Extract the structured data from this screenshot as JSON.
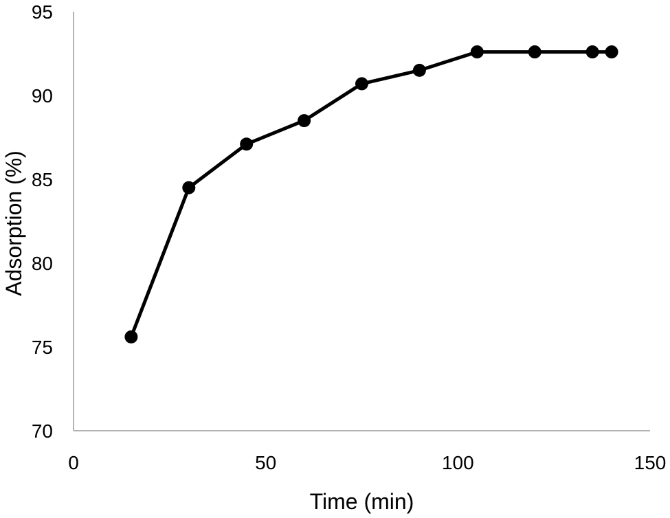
{
  "chart_data": {
    "type": "line",
    "title": "",
    "xlabel": "Time (min)",
    "ylabel": "Adsorption (%)",
    "xlim": [
      0,
      150
    ],
    "ylim": [
      70,
      95
    ],
    "xticks": [
      0,
      50,
      100,
      150
    ],
    "yticks": [
      70,
      75,
      80,
      85,
      90,
      95
    ],
    "xtick_labels": [
      "0",
      "50",
      "100",
      "150"
    ],
    "ytick_labels": [
      "70",
      "75",
      "80",
      "85",
      "90",
      "95"
    ],
    "grid": false,
    "legend": "none",
    "series": [
      {
        "x": [
          15,
          30,
          45,
          60,
          75,
          90,
          105,
          120,
          135,
          140
        ],
        "y": [
          75.6,
          84.5,
          87.1,
          88.5,
          90.7,
          91.5,
          92.6,
          92.6,
          92.6,
          92.6
        ],
        "color": "#000000",
        "marker": "circle"
      }
    ]
  }
}
